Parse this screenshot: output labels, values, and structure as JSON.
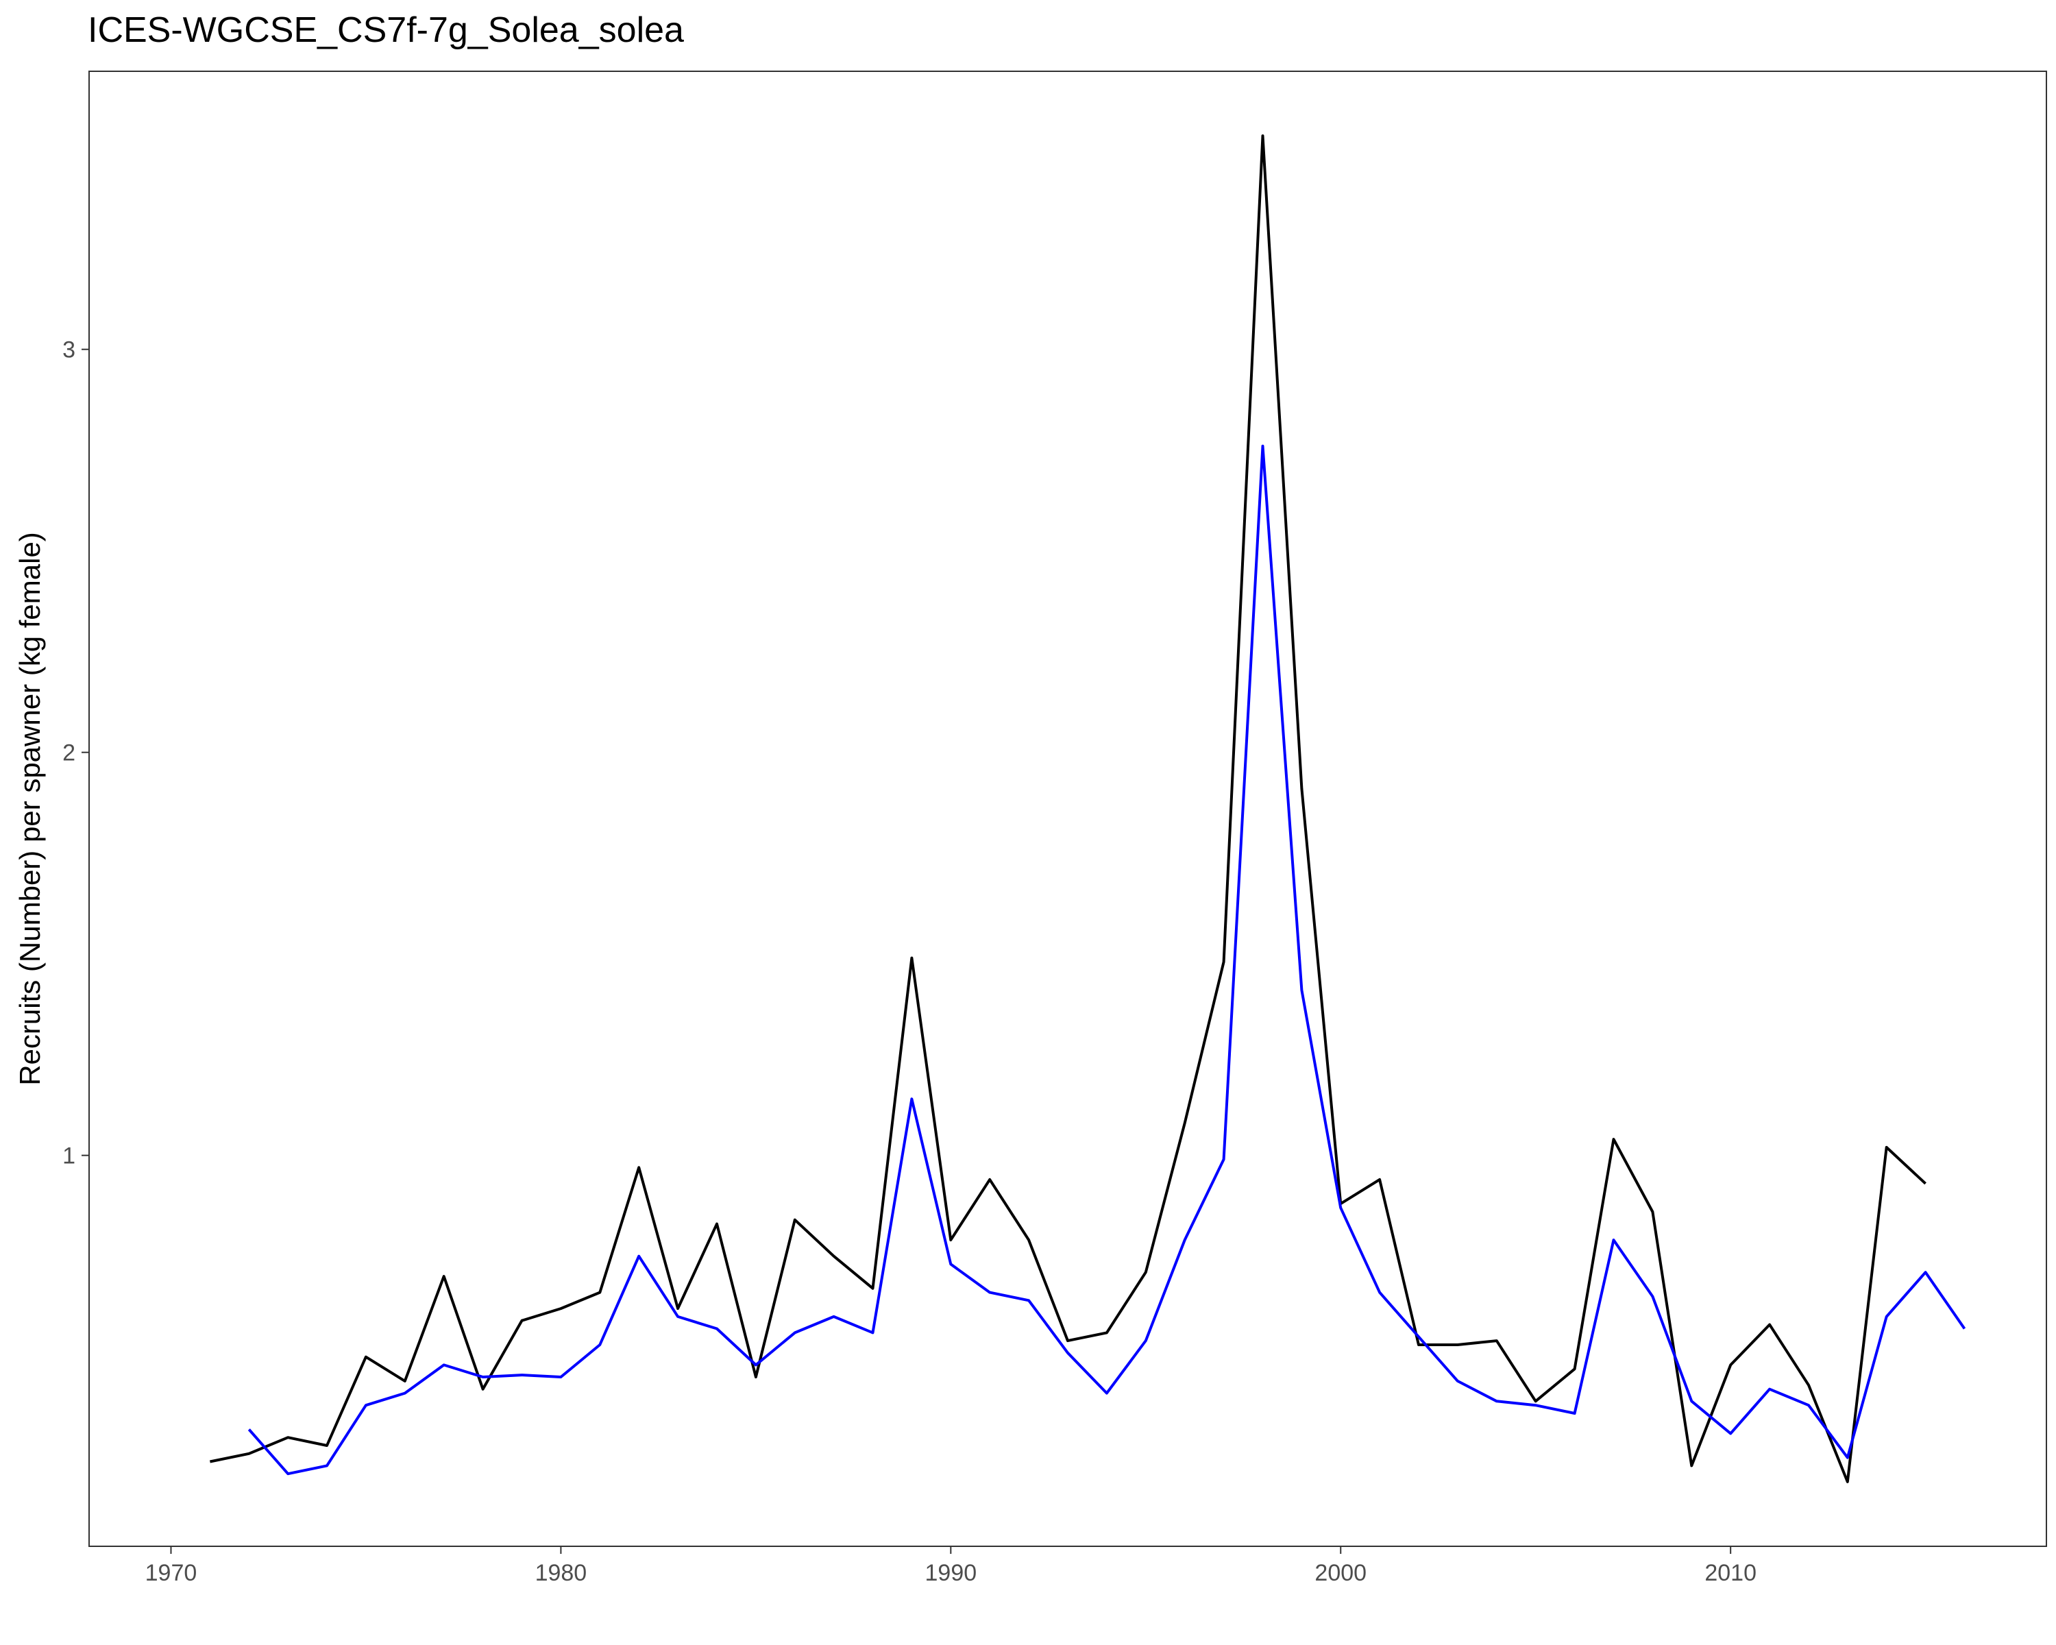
{
  "chart_data": {
    "type": "line",
    "title": "ICES-WGCSE_CS7f-7g_Solea_solea",
    "xlabel": "",
    "ylabel": "Recruits (Number) per spawner (kg female)",
    "xlim": [
      1967.9,
      2018.1
    ],
    "ylim": [
      0.03,
      3.69
    ],
    "x_ticks": [
      1970,
      1980,
      1990,
      2000,
      2010
    ],
    "x_tick_labels": [
      "1970",
      "1980",
      "1990",
      "2000",
      "2010"
    ],
    "y_ticks": [
      1,
      2,
      3
    ],
    "y_tick_labels": [
      "1",
      "2",
      "3"
    ],
    "grid": false,
    "legend": "none",
    "series": [
      {
        "color": "#000000",
        "x": [
          1971,
          1972,
          1973,
          1974,
          1975,
          1976,
          1977,
          1978,
          1979,
          1980,
          1981,
          1982,
          1983,
          1984,
          1985,
          1986,
          1987,
          1988,
          1989,
          1990,
          1991,
          1992,
          1993,
          1994,
          1995,
          1996,
          1997,
          1998,
          1999,
          2000,
          2001,
          2002,
          2003,
          2004,
          2005,
          2006,
          2007,
          2008,
          2009,
          2010,
          2011,
          2012,
          2013,
          2014,
          2015
        ],
        "values": [
          0.24,
          0.26,
          0.3,
          0.28,
          0.5,
          0.44,
          0.7,
          0.42,
          0.59,
          0.62,
          0.66,
          0.97,
          0.62,
          0.83,
          0.45,
          0.84,
          0.75,
          0.67,
          1.49,
          0.79,
          0.94,
          0.79,
          0.54,
          0.56,
          0.71,
          1.08,
          1.48,
          3.53,
          1.91,
          0.88,
          0.94,
          0.53,
          0.53,
          0.54,
          0.39,
          0.47,
          1.04,
          0.86,
          0.23,
          0.48,
          0.58,
          0.43,
          0.19,
          1.02,
          0.93
        ]
      },
      {
        "color": "#0000ff",
        "x": [
          1972,
          1973,
          1974,
          1975,
          1976,
          1977,
          1978,
          1979,
          1980,
          1981,
          1982,
          1983,
          1984,
          1985,
          1986,
          1987,
          1988,
          1989,
          1990,
          1991,
          1992,
          1993,
          1994,
          1995,
          1996,
          1997,
          1998,
          1999,
          2000,
          2001,
          2002,
          2003,
          2004,
          2005,
          2006,
          2007,
          2008,
          2009,
          2010,
          2011,
          2012,
          2013,
          2014,
          2015,
          2016
        ],
        "values": [
          0.32,
          0.21,
          0.23,
          0.38,
          0.41,
          0.48,
          0.45,
          0.455,
          0.45,
          0.53,
          0.75,
          0.6,
          0.57,
          0.48,
          0.56,
          0.6,
          0.56,
          1.14,
          0.73,
          0.66,
          0.64,
          0.51,
          0.41,
          0.54,
          0.79,
          0.99,
          2.76,
          1.41,
          0.87,
          0.66,
          0.55,
          0.44,
          0.39,
          0.38,
          0.36,
          0.79,
          0.65,
          0.39,
          0.31,
          0.42,
          0.38,
          0.25,
          0.6,
          0.71,
          0.57
        ]
      }
    ]
  }
}
